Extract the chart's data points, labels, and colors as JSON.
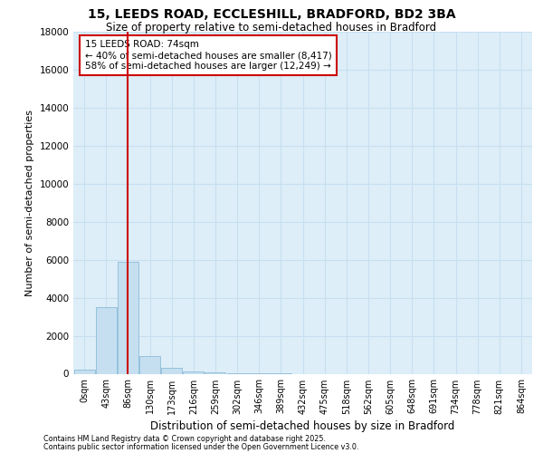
{
  "title_line1": "15, LEEDS ROAD, ECCLESHILL, BRADFORD, BD2 3BA",
  "title_line2": "Size of property relative to semi-detached houses in Bradford",
  "xlabel": "Distribution of semi-detached houses by size in Bradford",
  "ylabel": "Number of semi-detached properties",
  "bin_labels": [
    "0sqm",
    "43sqm",
    "86sqm",
    "130sqm",
    "173sqm",
    "216sqm",
    "259sqm",
    "302sqm",
    "346sqm",
    "389sqm",
    "432sqm",
    "475sqm",
    "518sqm",
    "562sqm",
    "605sqm",
    "648sqm",
    "691sqm",
    "734sqm",
    "778sqm",
    "821sqm",
    "864sqm"
  ],
  "bin_values": [
    200,
    3500,
    5900,
    950,
    300,
    100,
    50,
    5,
    2,
    1,
    0,
    0,
    0,
    0,
    0,
    0,
    0,
    0,
    0,
    0,
    0
  ],
  "bar_color": "#c5dff0",
  "bar_edge_color": "#7fb3d3",
  "ylim": [
    0,
    18000
  ],
  "yticks": [
    0,
    2000,
    4000,
    6000,
    8000,
    10000,
    12000,
    14000,
    16000,
    18000
  ],
  "property_line_x": 2.0,
  "annotation_title": "15 LEEDS ROAD: 74sqm",
  "annotation_line1": "← 40% of semi-detached houses are smaller (8,417)",
  "annotation_line2": "58% of semi-detached houses are larger (12,249) →",
  "annotation_box_color": "#ffffff",
  "annotation_box_edge": "#cc0000",
  "property_line_color": "#cc0000",
  "grid_color": "#c8dff0",
  "bg_color": "#ddeef8",
  "footnote1": "Contains HM Land Registry data © Crown copyright and database right 2025.",
  "footnote2": "Contains public sector information licensed under the Open Government Licence v3.0."
}
